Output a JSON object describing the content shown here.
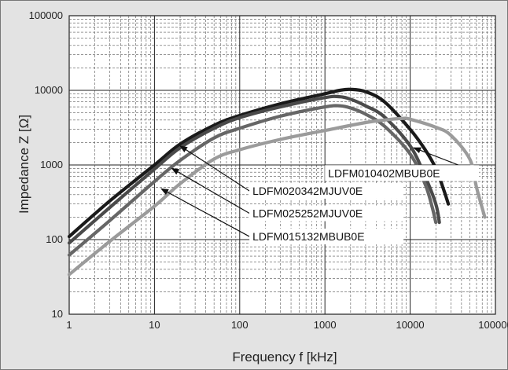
{
  "chart_data": {
    "type": "line",
    "title": "",
    "xlabel": "Frequency f [kHz]",
    "ylabel": "Impedance Z [Ω]",
    "x_scale": "log",
    "y_scale": "log",
    "xlim": [
      1,
      100000
    ],
    "ylim": [
      10,
      100000
    ],
    "grid": true,
    "x_ticks": [
      "1",
      "10",
      "100",
      "1000",
      "10000",
      "100000"
    ],
    "y_ticks": [
      "10",
      "100",
      "1000",
      "10000",
      "100000"
    ],
    "series": [
      {
        "name": "LDFM010402MBUB0E",
        "color": "#1a1a1a",
        "points": [
          [
            1,
            110
          ],
          [
            3,
            330
          ],
          [
            10,
            1000
          ],
          [
            20,
            1900
          ],
          [
            50,
            3400
          ],
          [
            100,
            4600
          ],
          [
            300,
            6600
          ],
          [
            1000,
            9000
          ],
          [
            1500,
            10000
          ],
          [
            2000,
            10300
          ],
          [
            3000,
            9600
          ],
          [
            5000,
            7000
          ],
          [
            10000,
            3000
          ],
          [
            15000,
            1600
          ],
          [
            20000,
            900
          ],
          [
            25000,
            450
          ],
          [
            28000,
            300
          ]
        ]
      },
      {
        "name": "LDFM020342MJUV0E",
        "color": "#4a4a4a",
        "points": [
          [
            1,
            90
          ],
          [
            3,
            270
          ],
          [
            10,
            880
          ],
          [
            20,
            1700
          ],
          [
            50,
            3100
          ],
          [
            100,
            4300
          ],
          [
            300,
            6000
          ],
          [
            1000,
            8000
          ],
          [
            1500,
            8200
          ],
          [
            2000,
            7600
          ],
          [
            3000,
            6200
          ],
          [
            5000,
            4400
          ],
          [
            10000,
            1800
          ],
          [
            15000,
            700
          ],
          [
            20000,
            300
          ],
          [
            22000,
            170
          ]
        ]
      },
      {
        "name": "LDFM025252MJUV0E",
        "color": "#666666",
        "points": [
          [
            1,
            62
          ],
          [
            3,
            180
          ],
          [
            10,
            600
          ],
          [
            20,
            1150
          ],
          [
            50,
            2300
          ],
          [
            100,
            3100
          ],
          [
            300,
            4500
          ],
          [
            1000,
            6000
          ],
          [
            1500,
            6200
          ],
          [
            2000,
            5800
          ],
          [
            3000,
            4800
          ],
          [
            5000,
            3300
          ],
          [
            10000,
            1400
          ],
          [
            15000,
            550
          ],
          [
            18000,
            280
          ],
          [
            20000,
            170
          ]
        ]
      },
      {
        "name": "LDFM015132MBUB0E",
        "color": "#9b9b9b",
        "points": [
          [
            1,
            34
          ],
          [
            3,
            95
          ],
          [
            10,
            280
          ],
          [
            20,
            560
          ],
          [
            50,
            1200
          ],
          [
            100,
            1600
          ],
          [
            300,
            2200
          ],
          [
            1000,
            2900
          ],
          [
            3000,
            3700
          ],
          [
            5000,
            4000
          ],
          [
            8000,
            4200
          ],
          [
            10000,
            4100
          ],
          [
            20000,
            3200
          ],
          [
            30000,
            2500
          ],
          [
            50000,
            1200
          ],
          [
            60000,
            500
          ],
          [
            75000,
            200
          ]
        ]
      }
    ],
    "annotations": [
      {
        "text": "LDFM010402MBUB0E",
        "series": 0,
        "point_at": [
          11000,
          1700
        ],
        "label_at": [
          1000,
          780
        ]
      },
      {
        "text": "LDFM020342MJUV0E",
        "series": 1,
        "point_at": [
          20,
          1800
        ],
        "label_at": [
          130,
          450
        ]
      },
      {
        "text": "LDFM025252MJUV0E",
        "series": 2,
        "point_at": [
          16,
          900
        ],
        "label_at": [
          130,
          225
        ]
      },
      {
        "text": "LDFM015132MBUB0E",
        "series": 3,
        "point_at": [
          12,
          480
        ],
        "label_at": [
          130,
          110
        ]
      }
    ]
  }
}
